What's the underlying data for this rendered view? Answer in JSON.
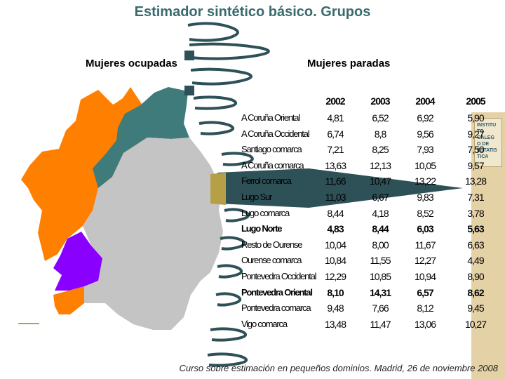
{
  "title": "Estimador sintético básico. Grupos",
  "subtitle_left": "Mujeres ocupadas",
  "subtitle_right": "Mujeres paradas",
  "logo_text": "INSTITUTO GALEGO DE ESTATISTICA",
  "colors": {
    "title": "#3a6b6f",
    "teal": "#3f7b7b",
    "orange": "#ff7f00",
    "purple": "#8a00ff",
    "gray": "#c4c4c4",
    "ribbon": "#2d5157",
    "olive": "#b5a047"
  },
  "table": {
    "years": [
      "2002",
      "2003",
      "2004",
      "2005"
    ],
    "rows": [
      {
        "name": "A Coruña Oriental",
        "values": [
          "4,81",
          "6,52",
          "6,92",
          "5,90"
        ],
        "bold": false
      },
      {
        "name": "A Coruña Occidental",
        "values": [
          "6,74",
          "8,8",
          "9,56",
          "9,27"
        ],
        "bold": false
      },
      {
        "name": "Santiago comarca",
        "values": [
          "7,21",
          "8,25",
          "7,93",
          "7,50"
        ],
        "bold": false
      },
      {
        "name": "A Coruña comarca",
        "values": [
          "13,63",
          "12,13",
          "10,05",
          "9,57"
        ],
        "bold": false
      },
      {
        "name": "Ferrol comarca",
        "values": [
          "11,66",
          "10,47",
          "13,22",
          "13,28"
        ],
        "bold": false
      },
      {
        "name": "Lugo Sur",
        "values": [
          "11,03",
          "6,67",
          "9,83",
          "7,31"
        ],
        "bold": false
      },
      {
        "name": "Lugo comarca",
        "values": [
          "8,44",
          "4,18",
          "8,52",
          "3,78"
        ],
        "bold": false
      },
      {
        "name": "Lugo Norte",
        "values": [
          "4,83",
          "8,44",
          "6,03",
          "5,63"
        ],
        "bold": true
      },
      {
        "name": "Resto de Ourense",
        "values": [
          "10,04",
          "8,00",
          "11,67",
          "6,63"
        ],
        "bold": false
      },
      {
        "name": "Ourense comarca",
        "values": [
          "10,84",
          "11,55",
          "12,27",
          "4,49"
        ],
        "bold": false
      },
      {
        "name": "Pontevedra Occidental",
        "values": [
          "12,29",
          "10,85",
          "10,94",
          "8,90"
        ],
        "bold": false
      },
      {
        "name": "Pontevedra Oriental",
        "values": [
          "8,10",
          "14,31",
          "6,57",
          "8,62"
        ],
        "bold": true
      },
      {
        "name": "Pontevedra comarca",
        "values": [
          "9,48",
          "7,66",
          "8,12",
          "9,45"
        ],
        "bold": false
      },
      {
        "name": "Vigo comarca",
        "values": [
          "13,48",
          "11,47",
          "13,06",
          "10,27"
        ],
        "bold": false
      }
    ]
  },
  "footer": "Curso sobre estimación en pequeños dominios. Madrid, 26 de noviembre 2008"
}
